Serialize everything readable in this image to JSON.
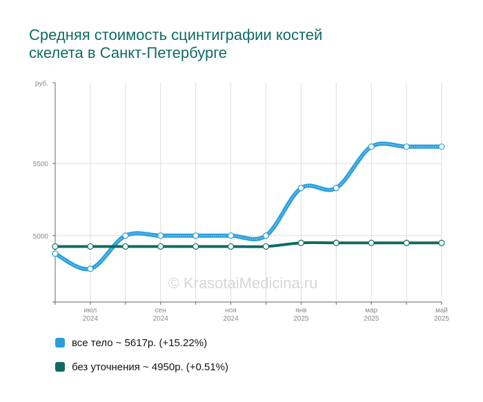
{
  "title_lines": [
    "Средняя стоимость сцинтиграфии костей",
    "скелета в Санкт-Петербурге"
  ],
  "watermark": "© KrasotaiMedicina.ru",
  "chart_data": {
    "type": "line",
    "ylabel": "руб.",
    "ylim": [
      4540,
      6060
    ],
    "yticks": [
      5000,
      5500
    ],
    "x_ticks": [
      {
        "month": "июл",
        "year": "2024"
      },
      {
        "month": "сен",
        "year": "2024"
      },
      {
        "month": "ноя",
        "year": "2024"
      },
      {
        "month": "янв",
        "year": "2025"
      },
      {
        "month": "мар",
        "year": "2025"
      },
      {
        "month": "май",
        "year": "2025"
      }
    ],
    "x_period": [
      "2024-06",
      "2024-07",
      "2024-08",
      "2024-09",
      "2024-10",
      "2024-11",
      "2024-12",
      "2025-01",
      "2025-02",
      "2025-03",
      "2025-04",
      "2025-05"
    ],
    "grid": true,
    "series": [
      {
        "name": "все тело",
        "color": "#2a9fdc",
        "values": [
          4875,
          4770,
          5000,
          5000,
          5000,
          5000,
          5000,
          5330,
          5330,
          5617,
          5617,
          5617
        ],
        "legend_value": "~ 5617р.",
        "legend_change": "(+15.22%)"
      },
      {
        "name": "без уточнения",
        "color": "#0f6b62",
        "values": [
          4925,
          4925,
          4925,
          4925,
          4925,
          4925,
          4925,
          4950,
          4950,
          4950,
          4950,
          4950
        ],
        "legend_value": "~ 4950р.",
        "legend_change": "(+0.51%)"
      }
    ]
  }
}
